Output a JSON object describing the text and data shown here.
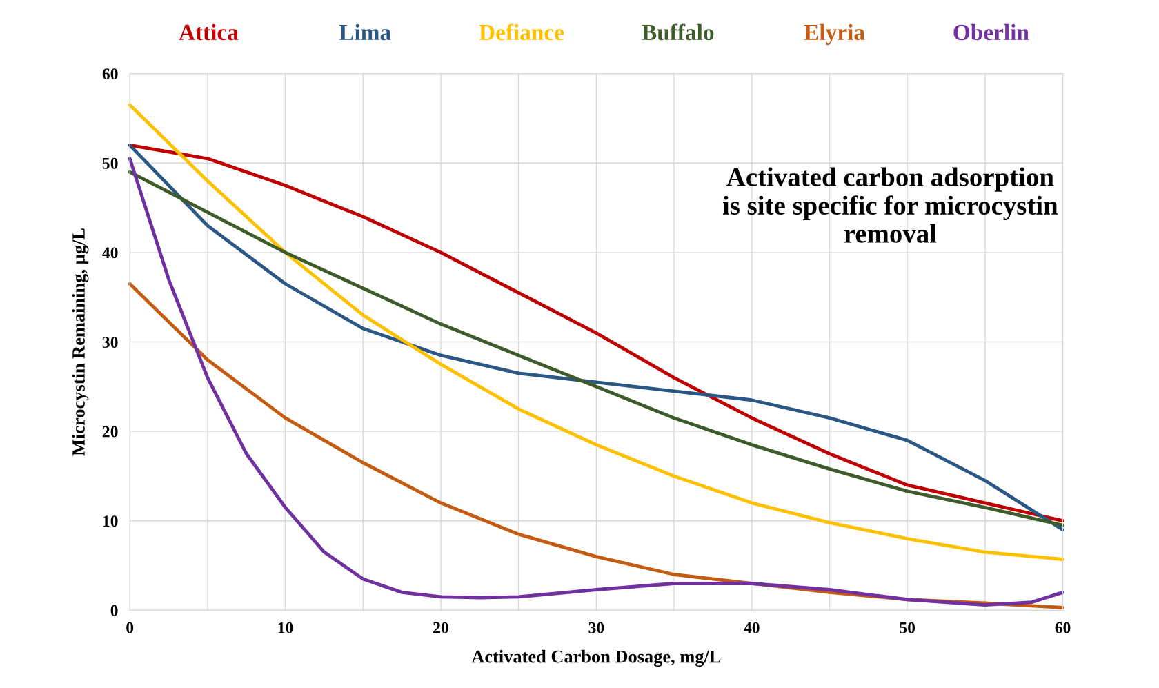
{
  "chart_data": {
    "type": "line",
    "xlabel": "Activated Carbon Dosage, mg/L",
    "ylabel": "Microcystin Remaining, µg/L",
    "annotations": [
      "Activated carbon adsorption is site specific for microcystin removal"
    ],
    "x": [
      0,
      5,
      10,
      15,
      20,
      25,
      30,
      35,
      40,
      45,
      50,
      55,
      60
    ],
    "series": [
      {
        "name": "Attica",
        "color": "#c00000",
        "values": [
          52,
          50.5,
          47.5,
          44,
          40,
          35.5,
          31,
          26,
          21.5,
          17.5,
          14,
          12,
          10
        ]
      },
      {
        "name": "Lima",
        "color": "#2a5783",
        "values": [
          52,
          43,
          36.5,
          31.5,
          28.5,
          26.5,
          25.5,
          24.5,
          23.5,
          21.5,
          19,
          14.5,
          9
        ]
      },
      {
        "name": "Defiance",
        "color": "#ffc000",
        "values": [
          56.5,
          48,
          40,
          33,
          27.5,
          22.5,
          18.5,
          15,
          12,
          9.8,
          8,
          6.5,
          5.7
        ]
      },
      {
        "name": "Buffalo",
        "color": "#3d5c2a",
        "values": [
          49,
          44.5,
          40,
          36,
          32,
          28.5,
          25,
          21.5,
          18.5,
          15.8,
          13.3,
          11.5,
          9.5
        ]
      },
      {
        "name": "Elyria",
        "color": "#c55a11",
        "values": [
          36.5,
          28,
          21.5,
          16.5,
          12,
          8.5,
          6,
          4,
          3,
          2,
          1.2,
          0.8,
          0.3
        ]
      },
      {
        "name": "Oberlin",
        "color": "#7030a0",
        "x": [
          0,
          2.5,
          5,
          7.5,
          10,
          12.5,
          15,
          17.5,
          20,
          22.5,
          25,
          30,
          35,
          40,
          45,
          50,
          55,
          58,
          60
        ],
        "values": [
          50.5,
          37,
          26,
          17.5,
          11.5,
          6.5,
          3.5,
          2,
          1.5,
          1.4,
          1.5,
          2.3,
          3,
          3,
          2.3,
          1.2,
          0.6,
          0.9,
          2
        ]
      }
    ],
    "xlim": [
      0,
      60
    ],
    "xticks": [
      0,
      {
        "value": 5,
        "label": null
      },
      10,
      {
        "value": 15,
        "label": null
      },
      20,
      {
        "value": 25,
        "label": null
      },
      30,
      {
        "value": 35,
        "label": null
      },
      40,
      {
        "value": 45,
        "label": null
      },
      50,
      {
        "value": 55,
        "label": null
      },
      60
    ],
    "ylim": [
      0,
      60
    ],
    "yticks": [
      0,
      10,
      20,
      30,
      40,
      50,
      60
    ],
    "grid": true,
    "legend": "top",
    "line_style": "solid",
    "marker": "none"
  }
}
